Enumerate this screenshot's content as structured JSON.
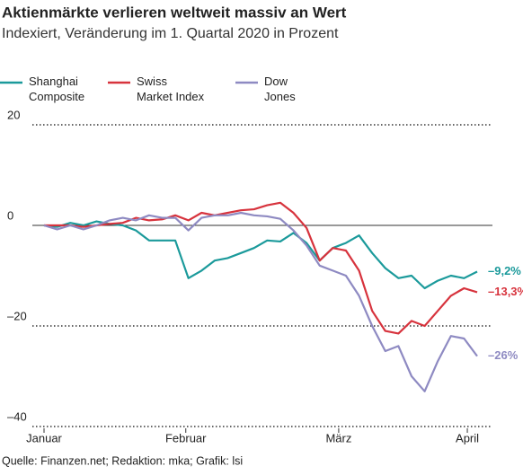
{
  "chart_data": {
    "type": "line",
    "title": "Aktienmärkte verlieren weltweit massiv an Wert",
    "subtitle": "Indexiert, Veränderung im 1. Quartal 2020 in Prozent",
    "source": "Quelle: Finanzen.net; Redaktion: mka; Grafik: lsi",
    "x": [
      0,
      2,
      4,
      6,
      8,
      10,
      12,
      14,
      16,
      18,
      20,
      22,
      24,
      26,
      28,
      30,
      32,
      34,
      36,
      38,
      40,
      42,
      44,
      46,
      48,
      50,
      52,
      54,
      56,
      58,
      60,
      62,
      64,
      66
    ],
    "xlim": [
      0,
      66
    ],
    "xticks": [
      {
        "value": 0,
        "label": "Januar"
      },
      {
        "value": 21.6,
        "label": "Februar"
      },
      {
        "value": 44.9,
        "label": "März"
      },
      {
        "value": 64.5,
        "label": "April"
      }
    ],
    "ylim": [
      -40,
      20
    ],
    "yticks": [
      20,
      0,
      {
        "value": -20,
        "label": "–20"
      },
      {
        "value": -40,
        "label": "–40"
      }
    ],
    "grid": true,
    "series": [
      {
        "name": "Shanghai Composite",
        "color": "#1b9a9b",
        "end_label": "–9,2%",
        "values": [
          0,
          -0.3,
          0.5,
          0,
          0.8,
          0.3,
          0,
          -1,
          -3,
          -3,
          -3,
          -10.5,
          -9,
          -7,
          -6.5,
          -5.5,
          -4.5,
          -3,
          -3.2,
          -1.5,
          -3.5,
          -7,
          -4.5,
          -3.5,
          -2,
          -5.5,
          -8.5,
          -10.5,
          -10,
          -12.5,
          -11,
          -10,
          -10.5,
          -9.2
        ]
      },
      {
        "name": "Swiss Market Index",
        "color": "#d7333d",
        "end_label": "–13,3%",
        "values": [
          0,
          0,
          0,
          -0.3,
          0,
          0.3,
          0.5,
          1.5,
          1,
          1.2,
          2,
          1,
          2.5,
          2,
          2.5,
          3,
          3.2,
          4,
          4.5,
          2.5,
          -0.5,
          -7,
          -4.5,
          -5,
          -9,
          -17,
          -21,
          -21.5,
          -19,
          -20,
          -17,
          -14,
          -12.5,
          -13.3
        ]
      },
      {
        "name": "Dow Jones",
        "color": "#8e8ac2",
        "end_label": "–26%",
        "values": [
          0,
          -0.8,
          0,
          -0.8,
          0,
          1,
          1.5,
          1,
          2,
          1.5,
          1.5,
          -1,
          1.5,
          2,
          2,
          2.5,
          2,
          1.8,
          1.3,
          -1,
          -4,
          -8,
          -9,
          -10,
          -14,
          -20,
          -25,
          -24,
          -30,
          -33,
          -27,
          -22,
          -22.5,
          -26
        ]
      }
    ]
  }
}
